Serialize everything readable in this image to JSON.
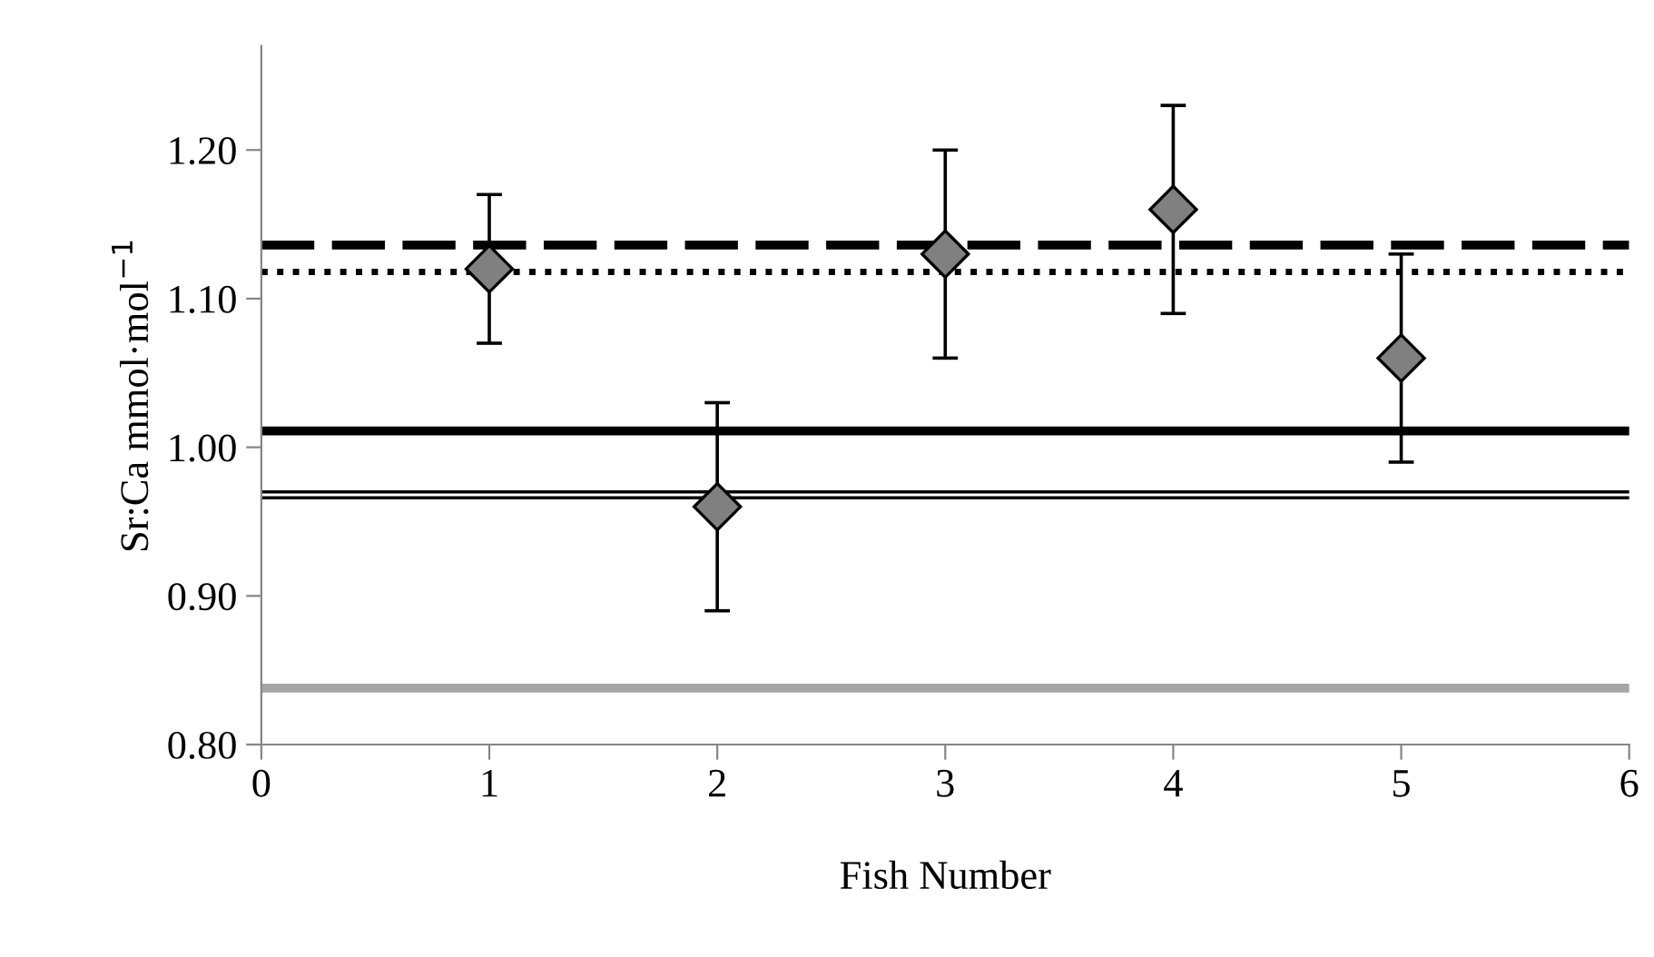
{
  "chart_data": {
    "type": "scatter",
    "xlabel": "Fish Number",
    "ylabel": "Sr:Ca mmol·mol$^{−1}$",
    "x": [
      1,
      2,
      3,
      4,
      5
    ],
    "series": [
      {
        "color": "#808080",
        "values": [
          1.12,
          0.96,
          1.13,
          1.16,
          1.06
        ],
        "errors": [
          0.05,
          0.07,
          0.07,
          0.07,
          0.07
        ]
      }
    ],
    "marker": "diamond",
    "xlim": [
      0,
      6
    ],
    "xticks": [
      0,
      1,
      2,
      3,
      4,
      5,
      6
    ],
    "ylim": [
      0.8,
      1.27
    ],
    "yticks": [
      {
        "value": 0.8,
        "label": "0.80"
      },
      {
        "value": 0.9,
        "label": "0.90"
      },
      {
        "value": 1.0,
        "label": "1.00"
      },
      {
        "value": 1.1,
        "label": "1.10"
      },
      {
        "value": 1.2,
        "label": "1.20"
      }
    ],
    "ref_lines": [
      {
        "axis": "y",
        "value": 1.136,
        "color": "#000000",
        "line_style": "dashed"
      },
      {
        "axis": "y",
        "value": 1.118,
        "color": "#000000",
        "line_style": "dotted"
      },
      {
        "axis": "y",
        "value": 1.011,
        "color": "#000000",
        "line_style": "solid"
      },
      {
        "axis": "y",
        "value": 0.97,
        "color": "#000000",
        "line_style": "solid"
      },
      {
        "axis": "y",
        "value": 0.966,
        "color": "#000000",
        "line_style": "solid"
      },
      {
        "axis": "y",
        "value": 0.838,
        "color": "#a6a6a6",
        "line_style": "solid"
      }
    ],
    "grid": false,
    "legend": false
  }
}
